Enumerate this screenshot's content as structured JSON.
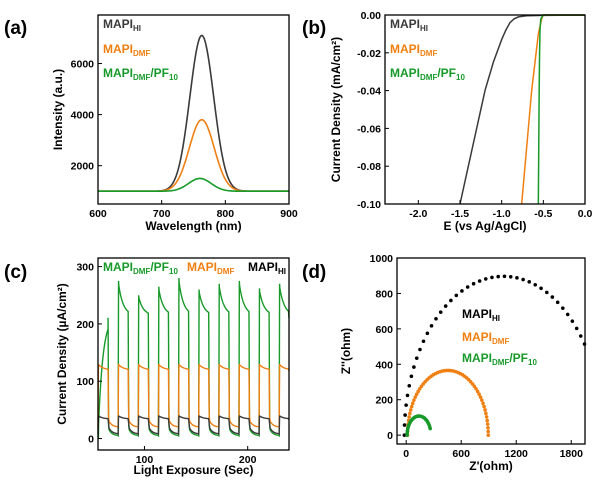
{
  "panels": [
    "(a)",
    "(b)",
    "(c)",
    "(d)"
  ],
  "colors": {
    "hi": "#3a3a3a",
    "dmf": "#f07f12",
    "pf": "#189a2a",
    "eis_hi": "#000000"
  },
  "chart_data": [
    {
      "id": "a",
      "type": "line",
      "title": "",
      "xlabel": "Wavelength (nm)",
      "ylabel": "Intensity (a.u.)",
      "xlim": [
        600,
        900
      ],
      "ylim": [
        500,
        7900
      ],
      "xticks": [
        600,
        700,
        800,
        900
      ],
      "yticks": [
        2000,
        4000,
        6000
      ],
      "legend_position": "top-left",
      "series": [
        {
          "name": "MAPIHI",
          "base": "MAPI",
          "sub": "HI",
          "color_key": "hi",
          "baseline": 1000,
          "peak_x": 763,
          "peak_y": 7100,
          "fwhm": 44,
          "x": [
            600,
            700,
            730,
            750,
            763,
            775,
            800,
            830,
            900
          ],
          "y": [
            1000,
            1250,
            3150,
            6200,
            7100,
            6250,
            2700,
            1150,
            1000
          ]
        },
        {
          "name": "MAPIDMF",
          "base": "MAPI",
          "sub": "DMF",
          "color_key": "dmf",
          "baseline": 1000,
          "peak_x": 763,
          "peak_y": 3800,
          "fwhm": 46,
          "x": [
            600,
            700,
            730,
            750,
            763,
            775,
            800,
            830,
            900
          ],
          "y": [
            1000,
            1100,
            2050,
            3400,
            3800,
            3450,
            2100,
            1100,
            1000
          ]
        },
        {
          "name": "MAPIDMF/PF10",
          "base": "MAPI",
          "sub": "DMF",
          "suffix": "/PF",
          "suffix_sub": "10",
          "color_key": "pf",
          "baseline": 1000,
          "peak_x": 760,
          "peak_y": 1500,
          "fwhm": 42,
          "x": [
            600,
            700,
            740,
            760,
            780,
            820,
            900
          ],
          "y": [
            1000,
            1030,
            1300,
            1500,
            1350,
            1050,
            1000
          ]
        }
      ]
    },
    {
      "id": "b",
      "type": "line",
      "title": "",
      "xlabel": "E (vs Ag/AgCl)",
      "ylabel": "Current Density (mA/cm²)",
      "xlim": [
        -2.4,
        0
      ],
      "ylim": [
        -0.1,
        0
      ],
      "xticks": [
        -2.0,
        -1.5,
        -1.0,
        -0.5,
        0.0
      ],
      "xtick_labels": [
        "-2.0",
        "-1.5",
        "-1.0",
        "-0.5",
        "0.0"
      ],
      "yticks": [
        0.0,
        -0.02,
        -0.04,
        -0.06,
        -0.08,
        -0.1
      ],
      "ytick_labels": [
        "0.00",
        "-0.02",
        "-0.04",
        "-0.06",
        "-0.08",
        "-0.10"
      ],
      "legend_position": "top-left",
      "series": [
        {
          "name": "MAPIHI",
          "color_key": "hi",
          "x": [
            -1.5,
            -1.4,
            -1.3,
            -1.2,
            -1.1,
            -1.0,
            -0.95,
            -0.9,
            -0.85,
            -0.8,
            -0.7,
            -0.5,
            -0.3,
            0.0
          ],
          "y": [
            -0.1,
            -0.08,
            -0.06,
            -0.04,
            -0.025,
            -0.013,
            -0.008,
            -0.004,
            -0.002,
            -0.001,
            -0.0004,
            -0.0002,
            -0.0001,
            -0.0001
          ]
        },
        {
          "name": "MAPIDMF",
          "color_key": "dmf",
          "x": [
            -0.76,
            -0.72,
            -0.68,
            -0.64,
            -0.6,
            -0.56,
            -0.52,
            -0.5,
            -0.45,
            0.0
          ],
          "y": [
            -0.1,
            -0.08,
            -0.06,
            -0.04,
            -0.025,
            -0.01,
            -0.002,
            0.0,
            0.0,
            0.0
          ]
        },
        {
          "name": "MAPIDMF/PF10",
          "color_key": "pf",
          "x": [
            -0.56,
            -0.555,
            -0.55,
            -0.545,
            -0.54,
            -0.53,
            -0.5,
            -0.45,
            0.0
          ],
          "y": [
            -0.1,
            -0.07,
            -0.04,
            -0.02,
            -0.008,
            -0.002,
            0.0,
            0.0,
            0.0
          ]
        }
      ]
    },
    {
      "id": "c",
      "type": "line",
      "title": "",
      "xlabel": "Light Exposure (Sec)",
      "ylabel": "Current Density (µA/cm²)",
      "xlim": [
        55,
        240
      ],
      "ylim": [
        -20,
        315
      ],
      "xticks": [
        100,
        200
      ],
      "yticks": [
        0,
        100,
        200,
        300
      ],
      "legend_position": "top",
      "pulse": {
        "start": 55,
        "period": 19.5,
        "on": 9.75
      },
      "series": [
        {
          "name": "MAPIDMF/PF10",
          "color_key": "pf",
          "dark": 5,
          "light_peak": 280,
          "light_plateau": 215,
          "spike_x": [
            65,
            76,
            87,
            98,
            109,
            120,
            131,
            142,
            153,
            164,
            175,
            186,
            197,
            208,
            219,
            230,
            240
          ],
          "spike_y": [
            0,
            275,
            250,
            265,
            280,
            260,
            270,
            275,
            262,
            270,
            265,
            268,
            270,
            262,
            265,
            268,
            258
          ]
        },
        {
          "name": "MAPIDMF",
          "color_key": "dmf",
          "dark": 20,
          "light_peak": 130,
          "light_plateau": 120
        },
        {
          "name": "MAPIHI",
          "color_key": "hi",
          "dark": 8,
          "light_peak": 40,
          "light_plateau": 34
        }
      ]
    },
    {
      "id": "d",
      "type": "scatter",
      "title": "",
      "xlabel": "Z'(ohm)",
      "ylabel": "Z''(ohm)",
      "xlim": [
        -100,
        1950
      ],
      "ylim": [
        -50,
        1000
      ],
      "xticks": [
        0,
        600,
        1200,
        1800
      ],
      "yticks": [
        0,
        200,
        400,
        600,
        800,
        1000
      ],
      "legend_position": "center-right",
      "series": [
        {
          "name": "MAPIHI",
          "color_key": "eis_hi",
          "center": 1060,
          "radius": 1080,
          "theta_end_deg": 145,
          "points": 40
        },
        {
          "name": "MAPIDMF",
          "color_key": "dmf",
          "center": 455,
          "radius": 440,
          "theta_end_deg": 180,
          "points": 55
        },
        {
          "name": "MAPIDMF/PF10",
          "color_key": "pf",
          "center": 140,
          "radius": 130,
          "theta_end_deg": 160,
          "points": 26
        }
      ]
    }
  ]
}
